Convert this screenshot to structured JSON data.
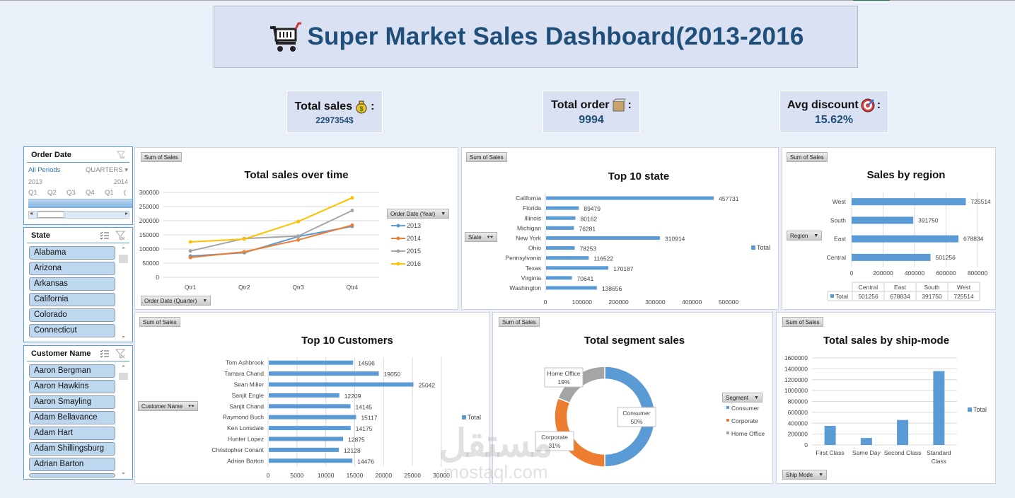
{
  "header": {
    "title": "Super Market Sales Dashboard(2013-2016",
    "icon": "shopping-cart-icon"
  },
  "kpis": {
    "total_sales": {
      "label": "Total sales",
      "icon": "money-bag-icon",
      "suffix": ":",
      "value": "2297354$"
    },
    "total_order": {
      "label": "Total order",
      "icon": "package-icon",
      "suffix": ":",
      "value": "9994"
    },
    "avg_discount": {
      "label": "Avg discount",
      "icon": "target-icon",
      "suffix": ":",
      "value": "15.62%"
    }
  },
  "slicers": {
    "order_date": {
      "title": "Order Date",
      "all_periods": "All Periods",
      "level": "QUARTERS",
      "years": [
        "2013",
        "2014"
      ],
      "quarters": [
        "Q1",
        "Q2",
        "Q3",
        "Q4",
        "Q1",
        "("
      ]
    },
    "state": {
      "title": "State",
      "items": [
        "Alabama",
        "Arizona",
        "Arkansas",
        "California",
        "Colorado",
        "Connecticut"
      ]
    },
    "customer_name": {
      "title": "Customer Name",
      "items": [
        "Aaron Bergman",
        "Aaron Hawkins",
        "Aaron Smayling",
        "Adam Bellavance",
        "Adam Hart",
        "Adam Shillingsburg",
        "Adrian Barton"
      ]
    }
  },
  "field_buttons": {
    "sum_of_sales": "Sum of Sales",
    "order_date_year": "Order Date (Year)",
    "order_date_quarter": "Order Date (Quarter)",
    "state": "State",
    "region": "Region",
    "customer_name": "Customer Name",
    "segment": "Segment",
    "ship_mode": "Ship Mode"
  },
  "watermark": {
    "arabic": "مستقل",
    "latin": "mostaql.com"
  },
  "chart_data": [
    {
      "id": "sales_over_time",
      "type": "line",
      "title": "Total sales over time",
      "categories": [
        "Qtr1",
        "Qtr2",
        "Qtr3",
        "Qtr4"
      ],
      "series": [
        {
          "name": "2013",
          "color": "#5b9bd5",
          "values": [
            75000,
            87000,
            144000,
            180000
          ]
        },
        {
          "name": "2014",
          "color": "#ed7d31",
          "values": [
            70000,
            90000,
            132000,
            184000
          ]
        },
        {
          "name": "2015",
          "color": "#a5a5a5",
          "values": [
            93000,
            137000,
            146000,
            236000
          ]
        },
        {
          "name": "2016",
          "color": "#ffc000",
          "values": [
            125000,
            135000,
            197000,
            281000
          ]
        }
      ],
      "yticks": [
        "0",
        "50000",
        "100000",
        "150000",
        "200000",
        "250000",
        "300000"
      ],
      "ylim": [
        0,
        300000
      ],
      "legend_title": "Order Date (Year)",
      "legend_position": "right",
      "grid": true
    },
    {
      "id": "top10_state",
      "type": "bar",
      "orientation": "horizontal",
      "title": "Top 10 state",
      "categories": [
        "California",
        "Florida",
        "Illinois",
        "Michigan",
        "New York",
        "Ohio",
        "Pennsylvania",
        "Texas",
        "Virginia",
        "Washington"
      ],
      "values": [
        457731,
        89479,
        80162,
        76281,
        310914,
        78253,
        116522,
        170187,
        70641,
        138656
      ],
      "xticks": [
        "0",
        "100000",
        "200000",
        "300000",
        "400000",
        "500000"
      ],
      "xlim": [
        0,
        500000
      ],
      "legend": [
        "Total"
      ],
      "color": "#5b9bd5"
    },
    {
      "id": "sales_by_region",
      "type": "bar",
      "orientation": "horizontal",
      "title": "Sales by region",
      "categories": [
        "West",
        "South",
        "East",
        "Central"
      ],
      "values": [
        725514,
        391750,
        678834,
        501256
      ],
      "xticks": [
        "0",
        "200000",
        "400000",
        "600000",
        "800000"
      ],
      "xlim": [
        0,
        800000
      ],
      "data_table": {
        "headers": [
          "Central",
          "East",
          "South",
          "West"
        ],
        "row_label": "Total",
        "values": [
          "501256",
          "678834",
          "391750",
          "725514"
        ]
      },
      "color": "#5b9bd5"
    },
    {
      "id": "top10_customers",
      "type": "bar",
      "orientation": "horizontal",
      "title": "Top 10 Customers",
      "categories": [
        "Tom Ashbrook",
        "Tamara Chand",
        "Sean Miller",
        "Sanjit Engle",
        "Sanjit Chand",
        "Raymond Buch",
        "Ken Lonsdale",
        "Hunter Lopez",
        "Christopher Conant",
        "Adrian Barton"
      ],
      "values": [
        14596,
        19050,
        25042,
        12209,
        14145,
        15117,
        14175,
        12875,
        12128,
        14476
      ],
      "xticks": [
        "0",
        "5000",
        "10000",
        "15000",
        "20000",
        "25000",
        "30000"
      ],
      "xlim": [
        0,
        30000
      ],
      "legend": [
        "Total"
      ],
      "color": "#5b9bd5"
    },
    {
      "id": "segment_sales",
      "type": "pie",
      "donut": true,
      "title": "Total segment sales",
      "categories": [
        "Consumer",
        "Corporate",
        "Home Office"
      ],
      "values": [
        50,
        31,
        19
      ],
      "labels": [
        "50%",
        "31%",
        "19%"
      ],
      "colors": [
        "#5b9bd5",
        "#ed7d31",
        "#a5a5a5"
      ],
      "legend_title": "Segment"
    },
    {
      "id": "ship_mode",
      "type": "bar",
      "orientation": "vertical",
      "title": "Total sales by ship-mode",
      "categories": [
        "First Class",
        "Same Day",
        "Second Class",
        "Standard Class"
      ],
      "values": [
        351000,
        128000,
        459000,
        1358000
      ],
      "yticks": [
        "0",
        "200000",
        "400000",
        "600000",
        "800000",
        "1000000",
        "1200000",
        "1400000",
        "1600000"
      ],
      "ylim": [
        0,
        1600000
      ],
      "legend": [
        "Total"
      ],
      "color": "#5b9bd5"
    }
  ]
}
